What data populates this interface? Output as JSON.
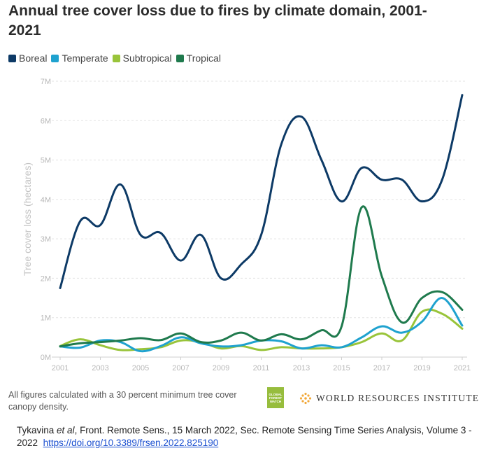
{
  "chart_data": {
    "type": "line",
    "title": "Annual tree cover loss due to fires by climate domain, 2001-2021",
    "xlabel": "",
    "ylabel": "Tree cover loss (hectares)",
    "ylim": [
      0,
      7000000
    ],
    "yticks": [
      0,
      1000000,
      2000000,
      3000000,
      4000000,
      5000000,
      6000000,
      7000000
    ],
    "ytick_labels": [
      "0M",
      "1M",
      "2M",
      "3M",
      "4M",
      "5M",
      "6M",
      "7M"
    ],
    "xlim": [
      2001,
      2021
    ],
    "xticks": [
      2001,
      2003,
      2005,
      2007,
      2009,
      2011,
      2013,
      2015,
      2017,
      2019,
      2021
    ],
    "xtick_labels": [
      "2001",
      "2003",
      "2005",
      "2007",
      "2009",
      "2011",
      "2013",
      "2015",
      "2017",
      "2019",
      "2021"
    ],
    "grid": "horizontal-dashed",
    "legend_position": "top-left",
    "x": [
      2001,
      2002,
      2003,
      2004,
      2005,
      2006,
      2007,
      2008,
      2009,
      2010,
      2011,
      2012,
      2013,
      2014,
      2015,
      2016,
      2017,
      2018,
      2019,
      2020,
      2021
    ],
    "series": [
      {
        "name": "Boreal",
        "color": "#0d3a66",
        "values": [
          1750000,
          3450000,
          3350000,
          4380000,
          3100000,
          3150000,
          2450000,
          3100000,
          2000000,
          2350000,
          3100000,
          5400000,
          6100000,
          5000000,
          3950000,
          4800000,
          4500000,
          4500000,
          3950000,
          4500000,
          6650000
        ]
      },
      {
        "name": "Temperate",
        "color": "#1fa2cf",
        "values": [
          270000,
          240000,
          420000,
          380000,
          150000,
          280000,
          500000,
          350000,
          270000,
          300000,
          420000,
          400000,
          220000,
          300000,
          250000,
          500000,
          780000,
          620000,
          900000,
          1500000,
          800000
        ]
      },
      {
        "name": "Subtropical",
        "color": "#99c43a",
        "values": [
          280000,
          450000,
          300000,
          180000,
          200000,
          250000,
          420000,
          380000,
          220000,
          280000,
          180000,
          250000,
          220000,
          220000,
          250000,
          380000,
          600000,
          420000,
          1150000,
          1100000,
          720000
        ]
      },
      {
        "name": "Tropical",
        "color": "#1f7a4d",
        "values": [
          270000,
          350000,
          380000,
          420000,
          480000,
          430000,
          600000,
          380000,
          420000,
          620000,
          420000,
          580000,
          450000,
          680000,
          780000,
          3800000,
          2050000,
          880000,
          1500000,
          1650000,
          1200000
        ]
      }
    ]
  },
  "footer": {
    "note": "All figures calculated with a 30 percent minimum tree cover canopy density.",
    "gfw_logo_text": "GLOBAL FOREST WATCH",
    "wri_text": "WORLD RESOURCES INSTITUTE"
  },
  "citation": {
    "authors": "Tykavina ",
    "et_al": "et al",
    "text": ", Front. Remote Sens., 15 March 2022, Sec. Remote Sensing Time Series Analysis, Volume 3 - 2022",
    "link": "https://doi.org/10.3389/frsen.2022.825190"
  }
}
